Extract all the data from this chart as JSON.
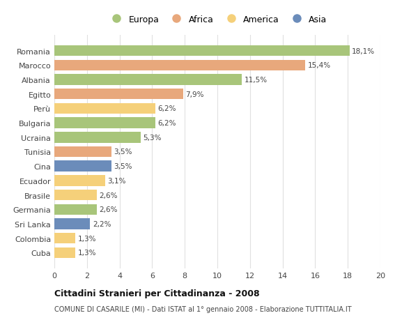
{
  "countries": [
    "Romania",
    "Marocco",
    "Albania",
    "Egitto",
    "Perù",
    "Bulgaria",
    "Ucraina",
    "Tunisia",
    "Cina",
    "Ecuador",
    "Brasile",
    "Germania",
    "Sri Lanka",
    "Colombia",
    "Cuba"
  ],
  "values": [
    18.1,
    15.4,
    11.5,
    7.9,
    6.2,
    6.2,
    5.3,
    3.5,
    3.5,
    3.1,
    2.6,
    2.6,
    2.2,
    1.3,
    1.3
  ],
  "labels": [
    "18,1%",
    "15,4%",
    "11,5%",
    "7,9%",
    "6,2%",
    "6,2%",
    "5,3%",
    "3,5%",
    "3,5%",
    "3,1%",
    "2,6%",
    "2,6%",
    "2,2%",
    "1,3%",
    "1,3%"
  ],
  "colors": [
    "#a8c57a",
    "#e8a87c",
    "#a8c57a",
    "#e8a87c",
    "#f5d07a",
    "#a8c57a",
    "#a8c57a",
    "#e8a87c",
    "#6b8cba",
    "#f5d07a",
    "#f5d07a",
    "#a8c57a",
    "#6b8cba",
    "#f5d07a",
    "#f5d07a"
  ],
  "legend_labels": [
    "Europa",
    "Africa",
    "America",
    "Asia"
  ],
  "legend_colors": [
    "#a8c57a",
    "#e8a87c",
    "#f5d07a",
    "#6b8cba"
  ],
  "title": "Cittadini Stranieri per Cittadinanza - 2008",
  "subtitle": "COMUNE DI CASARILE (MI) - Dati ISTAT al 1° gennaio 2008 - Elaborazione TUTTITALIA.IT",
  "xlim": [
    0,
    20
  ],
  "xticks": [
    0,
    2,
    4,
    6,
    8,
    10,
    12,
    14,
    16,
    18,
    20
  ],
  "background_color": "#ffffff",
  "grid_color": "#e0e0e0"
}
